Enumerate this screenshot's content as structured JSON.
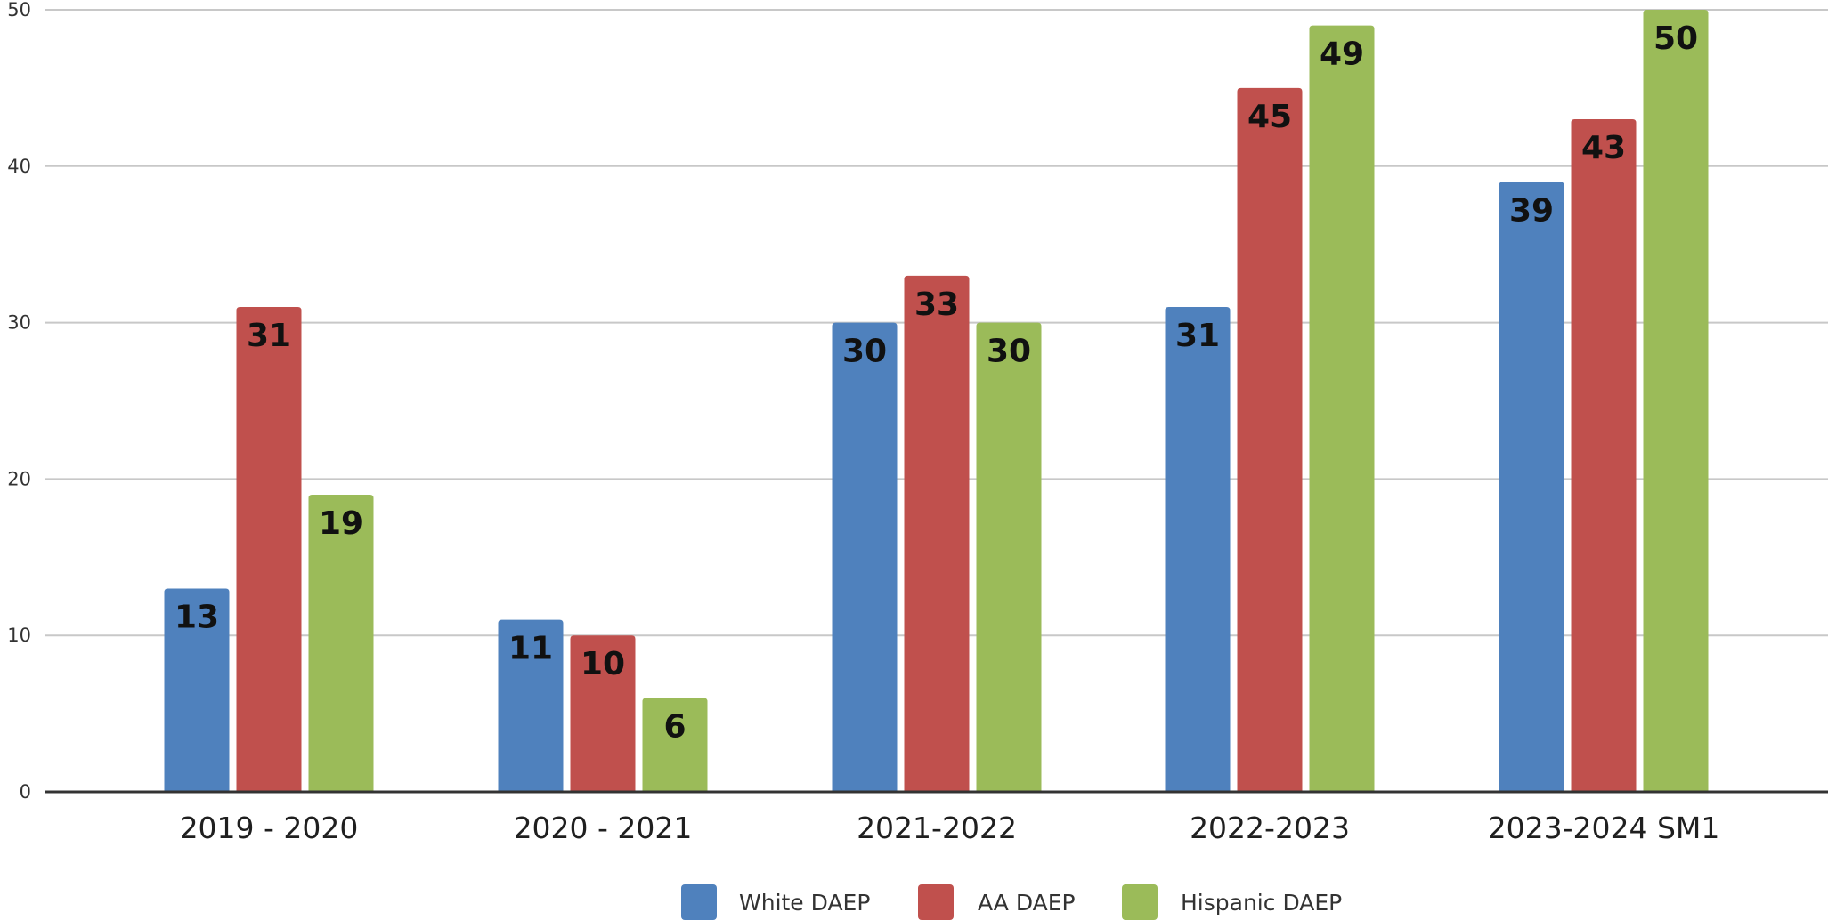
{
  "chart_data": {
    "type": "bar",
    "title": "",
    "xlabel": "",
    "ylabel": "",
    "ylim": [
      0,
      50
    ],
    "yticks": [
      0,
      10,
      20,
      30,
      40,
      50
    ],
    "grid": true,
    "legend_position": "bottom",
    "categories": [
      "2019 - 2020",
      "2020 - 2021",
      "2021-2022",
      "2022-2023",
      "2023-2024 SM1"
    ],
    "series": [
      {
        "name": "White DAEP",
        "color": "#4f81bd",
        "values": [
          13,
          11,
          30,
          31,
          39
        ]
      },
      {
        "name": "AA DAEP",
        "color": "#c0504d",
        "values": [
          31,
          10,
          33,
          45,
          43
        ]
      },
      {
        "name": "Hispanic DAEP",
        "color": "#9bbb59",
        "values": [
          19,
          6,
          30,
          49,
          50
        ]
      }
    ]
  }
}
